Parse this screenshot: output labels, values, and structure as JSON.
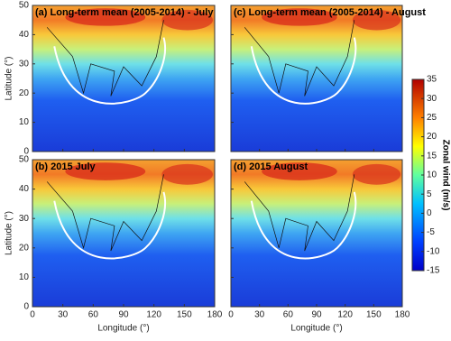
{
  "chart_data": [
    {
      "type": "contour",
      "title": "(a) Long-term mean (2005-2014) - July",
      "ylabel": "Latitude (°)",
      "xlim": [
        0,
        180
      ],
      "ylim": [
        0,
        50
      ],
      "xticks": [
        0,
        30,
        60,
        90,
        120,
        150,
        180
      ],
      "yticks": [
        0,
        10,
        20,
        30,
        40,
        50
      ]
    },
    {
      "type": "contour",
      "title": "(c) Long-term mean (2005-2014) - August",
      "xlim": [
        0,
        180
      ],
      "ylim": [
        0,
        50
      ],
      "xticks": [
        0,
        30,
        60,
        90,
        120,
        150,
        180
      ],
      "yticks": [
        0,
        10,
        20,
        30,
        40,
        50
      ]
    },
    {
      "type": "contour",
      "title": "(b) 2015 July",
      "xlabel": "Longitude (°)",
      "ylabel": "Latitude (°)",
      "xlim": [
        0,
        180
      ],
      "ylim": [
        0,
        50
      ],
      "xticks": [
        0,
        30,
        60,
        90,
        120,
        150,
        180
      ],
      "yticks": [
        0,
        10,
        20,
        30,
        40,
        50
      ]
    },
    {
      "type": "contour",
      "title": "(d) 2015 August",
      "xlabel": "Longitude (°)",
      "xlim": [
        0,
        180
      ],
      "ylim": [
        0,
        50
      ],
      "xticks": [
        0,
        30,
        60,
        90,
        120,
        150,
        180
      ],
      "yticks": [
        0,
        10,
        20,
        30,
        40,
        50
      ]
    },
    {
      "type": "colorbar",
      "label": "Zonal wind (m/s)",
      "clim": [
        -15,
        35
      ],
      "ticks": [
        -15,
        -10,
        -5,
        0,
        5,
        10,
        15,
        20,
        25,
        30,
        35
      ]
    }
  ]
}
